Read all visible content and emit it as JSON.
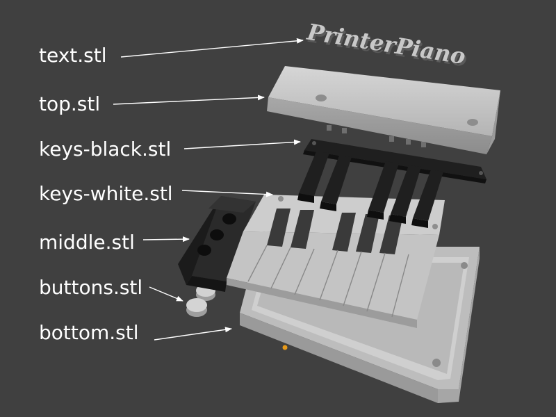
{
  "title_text": "PrinterPiano",
  "parts": [
    {
      "id": "text",
      "label": "text.stl"
    },
    {
      "id": "top",
      "label": "top.stl"
    },
    {
      "id": "keys-black",
      "label": "keys-black.stl"
    },
    {
      "id": "keys-white",
      "label": "keys-white.stl"
    },
    {
      "id": "middle",
      "label": "middle.stl"
    },
    {
      "id": "buttons",
      "label": "buttons.stl"
    },
    {
      "id": "bottom",
      "label": "bottom.stl"
    }
  ],
  "colors": {
    "background": "#404040",
    "label_text": "#ffffff",
    "arrow": "#ffffff",
    "light_part": "#c8c8c8",
    "dark_part": "#1f1f1f",
    "origin_marker": "#e89a1a"
  }
}
